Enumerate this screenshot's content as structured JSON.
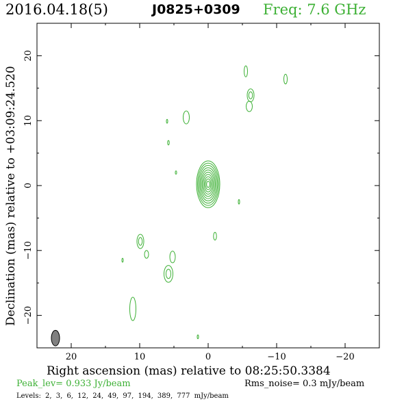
{
  "header": {
    "date": "2016.04.18(5)",
    "source": "J0825+0309",
    "freq": "Freq: 7.6 GHz"
  },
  "footer": {
    "peak": "Peak_lev=  0.933 Jy/beam",
    "rms": "Rms_noise=  0.3 mJy/beam",
    "levels": "Levels:  2,  3,  6,  12,  24,  49,  97,  194,  389,  777 mJy/beam"
  },
  "colors": {
    "contour": "#3cb034",
    "beam": "#808080",
    "accent": "#3cb034"
  },
  "chart_data": {
    "type": "contour",
    "title": "J0825+0309",
    "xlabel": "Right ascension (mas) relative to 08:25:50.3384",
    "ylabel": "Declination (mas) relative to +03:09:24.520",
    "xlim": [
      25,
      -25
    ],
    "ylim": [
      -25,
      25
    ],
    "xticks": [
      20,
      10,
      0,
      -10,
      -20
    ],
    "xtick_labels": [
      "20",
      "10",
      "0",
      "−10",
      "−20"
    ],
    "yticks": [
      20,
      10,
      0,
      -10,
      -20
    ],
    "ytick_labels": [
      "20",
      "10",
      "0",
      "−10",
      "−20"
    ],
    "peak_jy_per_beam": 0.933,
    "rms_mjy_per_beam": 0.3,
    "levels_mjy": [
      2,
      3,
      6,
      12,
      24,
      49,
      97,
      194,
      389,
      777
    ],
    "core": {
      "x": 0,
      "y": 0.2,
      "semi_major_y": 3.6,
      "semi_minor_x": 1.7
    },
    "beam": {
      "x": 22.3,
      "y": -23.5,
      "semi_minor_x": 0.6,
      "semi_major_y": 1.2
    },
    "components": [
      {
        "x": -5.5,
        "y": 17.6,
        "rx": 0.25,
        "ry": 0.85,
        "rings": 1
      },
      {
        "x": -11.3,
        "y": 16.4,
        "rx": 0.25,
        "ry": 0.75,
        "rings": 1
      },
      {
        "x": -6.2,
        "y": 13.9,
        "rx": 0.5,
        "ry": 1.0,
        "rings": 2
      },
      {
        "x": -6.0,
        "y": 12.2,
        "rx": 0.45,
        "ry": 0.8,
        "rings": 1
      },
      {
        "x": 3.2,
        "y": 10.5,
        "rx": 0.45,
        "ry": 1.0,
        "rings": 1
      },
      {
        "x": 6.0,
        "y": 9.9,
        "rx": 0.1,
        "ry": 0.3,
        "rings": 1
      },
      {
        "x": 5.8,
        "y": 6.6,
        "rx": 0.12,
        "ry": 0.35,
        "rings": 1
      },
      {
        "x": 4.7,
        "y": 2.0,
        "rx": 0.1,
        "ry": 0.25,
        "rings": 1
      },
      {
        "x": -4.5,
        "y": -2.5,
        "rx": 0.1,
        "ry": 0.35,
        "rings": 1
      },
      {
        "x": -1.0,
        "y": -7.8,
        "rx": 0.22,
        "ry": 0.6,
        "rings": 1
      },
      {
        "x": 9.9,
        "y": -8.6,
        "rx": 0.5,
        "ry": 1.1,
        "rings": 2
      },
      {
        "x": 9.0,
        "y": -10.6,
        "rx": 0.3,
        "ry": 0.6,
        "rings": 1
      },
      {
        "x": 12.5,
        "y": -11.5,
        "rx": 0.1,
        "ry": 0.3,
        "rings": 1
      },
      {
        "x": 5.2,
        "y": -11.0,
        "rx": 0.4,
        "ry": 0.9,
        "rings": 1
      },
      {
        "x": 5.8,
        "y": -13.6,
        "rx": 0.65,
        "ry": 1.3,
        "rings": 2
      },
      {
        "x": 11.0,
        "y": -19.0,
        "rx": 0.45,
        "ry": 1.8,
        "rings": 1
      },
      {
        "x": 1.5,
        "y": -23.3,
        "rx": 0.1,
        "ry": 0.3,
        "rings": 1
      }
    ]
  }
}
